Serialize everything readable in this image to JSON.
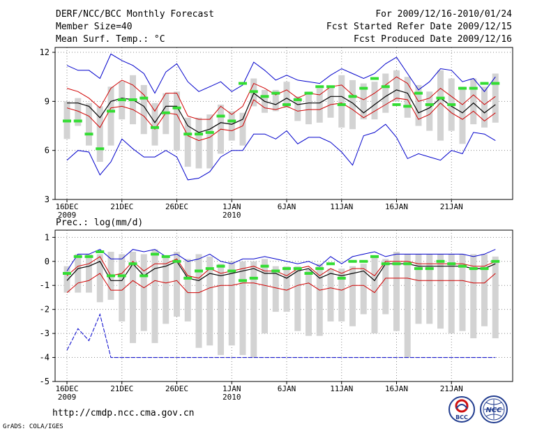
{
  "header": {
    "title": "DERF/NCC/BCC Monthly Forecast",
    "member_size": "Member Size=40",
    "variable1": "Mean Surf. Temp.: °C",
    "period": "For 2009/12/16-2010/01/24",
    "fcst_started": "Fcst Started Refer Date 2009/12/15",
    "fcst_produced": "Fcst Produced Date 2009/12/16"
  },
  "footer": {
    "url": "http://cmdp.ncc.cma.gov.cn",
    "credit": "GrADS: COLA/IGES",
    "logo_bcc": "BCC",
    "logo_ncc": "NCC"
  },
  "colors": {
    "box": "#d3d3d3",
    "mean_line": "#000000",
    "spread_line": "#d00000",
    "extreme_line": "#0000cc",
    "marker": "#33dd33",
    "grid": "#888888"
  },
  "chart_data": [
    {
      "type": "line",
      "title": "Mean Surf. Temp.: °C",
      "ylim": [
        3,
        12.3
      ],
      "yticks": [
        3,
        6,
        9,
        12
      ],
      "ytick_labels": [
        "3",
        "6",
        "9",
        "12"
      ],
      "x": [
        0,
        1,
        2,
        3,
        4,
        5,
        6,
        7,
        8,
        9,
        10,
        11,
        12,
        13,
        14,
        15,
        16,
        17,
        18,
        19,
        20,
        21,
        22,
        23,
        24,
        25,
        26,
        27,
        28,
        29,
        30,
        31,
        32,
        33,
        34,
        35,
        36,
        37,
        38,
        39
      ],
      "xticks": [
        0,
        5,
        10,
        15,
        20,
        25,
        30,
        35
      ],
      "xtick_labels": [
        "16DEC",
        "21DEC",
        "26DEC",
        "1JAN",
        "6JAN",
        "11JAN",
        "16JAN",
        "21JAN"
      ],
      "xtick_sublabels": [
        "2009",
        "",
        "",
        "2010",
        "",
        "",
        "",
        ""
      ],
      "series": [
        {
          "name": "max",
          "values": [
            11.2,
            10.9,
            10.9,
            10.4,
            11.9,
            11.5,
            11.2,
            10.7,
            9.5,
            10.8,
            11.3,
            10.2,
            9.6,
            9.9,
            10.2,
            9.6,
            10.0,
            11.4,
            10.9,
            10.3,
            10.6,
            10.3,
            10.2,
            10.1,
            10.6,
            11.0,
            10.7,
            10.4,
            10.7,
            11.3,
            11.7,
            10.7,
            9.7,
            10.2,
            11.0,
            10.9,
            10.2,
            10.4,
            9.6,
            10.5
          ]
        },
        {
          "name": "upper",
          "values": [
            9.8,
            9.6,
            9.2,
            8.6,
            9.8,
            10.3,
            10.0,
            9.4,
            8.4,
            9.5,
            9.5,
            8.1,
            7.9,
            7.9,
            8.7,
            8.2,
            8.7,
            10.1,
            9.8,
            9.4,
            9.7,
            9.2,
            9.5,
            9.4,
            9.9,
            10.0,
            9.4,
            9.1,
            9.5,
            10.0,
            10.5,
            10.1,
            9.0,
            9.2,
            9.8,
            9.3,
            8.8,
            9.4,
            8.8,
            9.3
          ]
        },
        {
          "name": "mean",
          "values": [
            8.9,
            8.9,
            8.7,
            8.0,
            9.0,
            9.2,
            9.1,
            8.7,
            7.7,
            8.7,
            8.7,
            7.5,
            7.1,
            7.3,
            7.7,
            7.6,
            7.9,
            9.5,
            9.0,
            8.8,
            9.2,
            8.8,
            8.9,
            8.9,
            9.3,
            9.3,
            8.9,
            8.3,
            8.8,
            9.3,
            9.7,
            9.5,
            8.3,
            8.6,
            9.2,
            8.7,
            8.3,
            8.9,
            8.3,
            8.8
          ]
        },
        {
          "name": "lower",
          "values": [
            8.6,
            8.4,
            8.1,
            7.4,
            8.6,
            8.7,
            8.5,
            8.1,
            7.3,
            8.3,
            8.2,
            6.9,
            6.6,
            6.8,
            7.3,
            7.2,
            7.5,
            9.1,
            8.6,
            8.5,
            8.7,
            8.4,
            8.5,
            8.5,
            8.8,
            8.9,
            8.5,
            8.0,
            8.4,
            8.8,
            9.2,
            9.1,
            7.9,
            8.2,
            8.9,
            8.3,
            7.9,
            8.4,
            7.8,
            8.3
          ]
        },
        {
          "name": "min",
          "values": [
            5.4,
            6.0,
            5.9,
            4.5,
            5.3,
            6.7,
            6.1,
            5.6,
            5.6,
            6.0,
            5.6,
            4.2,
            4.3,
            4.7,
            5.6,
            6.0,
            6.0,
            7.0,
            7.0,
            6.7,
            7.2,
            6.4,
            6.8,
            6.8,
            6.5,
            5.9,
            5.1,
            6.9,
            7.1,
            7.6,
            6.8,
            5.5,
            5.8,
            5.6,
            5.4,
            6.0,
            5.8,
            7.1,
            7.0,
            6.6
          ]
        },
        {
          "name": "box_top",
          "values": [
            9.0,
            9.2,
            8.9,
            8.7,
            9.9,
            10.2,
            10.6,
            10.0,
            8.9,
            9.5,
            9.6,
            8.0,
            8.0,
            8.2,
            8.8,
            8.4,
            8.3,
            10.4,
            9.7,
            9.7,
            10.2,
            9.3,
            9.6,
            9.8,
            9.9,
            10.6,
            10.3,
            10.1,
            10.2,
            10.7,
            10.9,
            10.5,
            10.0,
            9.6,
            10.9,
            10.4,
            9.9,
            10.4,
            9.9,
            10.7
          ]
        },
        {
          "name": "box_bottom",
          "values": [
            6.7,
            7.5,
            6.3,
            5.3,
            6.3,
            7.9,
            7.6,
            7.0,
            6.3,
            7.0,
            6.0,
            5.0,
            4.9,
            4.9,
            5.8,
            6.6,
            6.3,
            8.7,
            8.3,
            8.4,
            8.6,
            7.8,
            7.6,
            7.7,
            8.0,
            7.4,
            7.3,
            7.9,
            7.9,
            8.3,
            9.0,
            8.0,
            7.5,
            7.2,
            6.6,
            7.2,
            6.4,
            7.6,
            7.4,
            7.7
          ]
        },
        {
          "name": "observed_marker",
          "values": [
            7.8,
            7.8,
            7.0,
            6.1,
            8.4,
            9.1,
            9.1,
            9.2,
            7.4,
            8.3,
            8.6,
            7.0,
            7.0,
            7.1,
            8.1,
            7.8,
            10.1,
            9.6,
            9.3,
            9.5,
            8.8,
            9.1,
            9.5,
            9.9,
            9.9,
            8.8,
            9.3,
            9.8,
            10.4,
            9.9,
            8.8,
            8.7,
            9.5,
            8.8,
            9.2,
            8.8,
            9.8,
            9.8,
            10.1,
            10.1
          ]
        }
      ]
    },
    {
      "type": "line",
      "title": "Prec.: log(mm/d)",
      "ylim": [
        -5,
        1.3
      ],
      "yticks": [
        -5,
        -4,
        -3,
        -2,
        -1,
        0,
        1
      ],
      "ytick_labels": [
        "-5",
        "-4",
        "-3",
        "-2",
        "-1",
        "0",
        "1"
      ],
      "x": [
        0,
        1,
        2,
        3,
        4,
        5,
        6,
        7,
        8,
        9,
        10,
        11,
        12,
        13,
        14,
        15,
        16,
        17,
        18,
        19,
        20,
        21,
        22,
        23,
        24,
        25,
        26,
        27,
        28,
        29,
        30,
        31,
        32,
        33,
        34,
        35,
        36,
        37,
        38,
        39
      ],
      "xticks": [
        0,
        5,
        10,
        15,
        20,
        25,
        30,
        35
      ],
      "xtick_labels": [
        "16DEC",
        "21DEC",
        "26DEC",
        "1JAN",
        "6JAN",
        "11JAN",
        "16JAN",
        "21JAN"
      ],
      "xtick_sublabels": [
        "2009",
        "",
        "",
        "2010",
        "",
        "",
        "",
        ""
      ],
      "series": [
        {
          "name": "max",
          "values": [
            -0.4,
            0.3,
            0.3,
            0.5,
            0.1,
            0.1,
            0.5,
            0.4,
            0.5,
            0.2,
            0.3,
            0.0,
            0.1,
            0.3,
            0.0,
            -0.1,
            0.1,
            0.1,
            0.2,
            0.1,
            0.0,
            -0.1,
            0.0,
            -0.2,
            0.2,
            -0.1,
            0.2,
            0.3,
            0.4,
            0.2,
            0.3,
            0.3,
            0.3,
            0.3,
            0.3,
            0.3,
            0.3,
            0.2,
            0.3,
            0.5
          ]
        },
        {
          "name": "upper",
          "values": [
            -0.6,
            -0.2,
            -0.1,
            0.2,
            -0.6,
            -0.5,
            0.0,
            -0.4,
            -0.1,
            -0.1,
            0.1,
            -0.6,
            -0.7,
            -0.3,
            -0.5,
            -0.4,
            -0.3,
            -0.2,
            -0.4,
            -0.4,
            -0.6,
            -0.3,
            -0.2,
            -0.6,
            -0.3,
            -0.5,
            -0.3,
            -0.3,
            -0.6,
            0.0,
            0.0,
            0.0,
            -0.1,
            -0.1,
            -0.1,
            -0.1,
            -0.1,
            -0.2,
            -0.2,
            0.0
          ]
        },
        {
          "name": "mean",
          "values": [
            -0.8,
            -0.3,
            -0.2,
            0.0,
            -0.8,
            -0.8,
            -0.1,
            -0.6,
            -0.3,
            -0.2,
            0.0,
            -0.7,
            -0.8,
            -0.5,
            -0.6,
            -0.5,
            -0.4,
            -0.3,
            -0.5,
            -0.5,
            -0.7,
            -0.4,
            -0.3,
            -0.7,
            -0.5,
            -0.6,
            -0.5,
            -0.4,
            -0.8,
            -0.1,
            -0.1,
            -0.1,
            -0.2,
            -0.2,
            -0.2,
            -0.2,
            -0.2,
            -0.3,
            -0.3,
            -0.1
          ]
        },
        {
          "name": "lower",
          "values": [
            -1.3,
            -0.9,
            -0.8,
            -0.5,
            -1.2,
            -1.2,
            -0.8,
            -1.1,
            -0.8,
            -0.9,
            -0.8,
            -1.3,
            -1.3,
            -1.1,
            -1.0,
            -1.0,
            -0.9,
            -0.9,
            -1.0,
            -1.1,
            -1.2,
            -1.0,
            -0.9,
            -1.2,
            -1.1,
            -1.2,
            -1.0,
            -1.0,
            -1.3,
            -0.7,
            -0.7,
            -0.7,
            -0.8,
            -0.8,
            -0.8,
            -0.8,
            -0.8,
            -0.9,
            -0.9,
            -0.5
          ]
        },
        {
          "name": "min",
          "values": [
            -3.7,
            -2.8,
            -3.3,
            -2.2,
            -4.0,
            -4.0,
            -4.0,
            -4.0,
            -4.0,
            -4.0,
            -4.0,
            -4.0,
            -4.0,
            -4.0,
            -4.0,
            -4.0,
            -4.0,
            -4.0,
            -4.0,
            -4.0,
            -4.0,
            -4.0,
            -4.0,
            -4.0,
            -4.0,
            -4.0,
            -4.0,
            -4.0,
            -4.0,
            -4.0,
            -4.0,
            -4.0,
            -4.0,
            -4.0,
            -4.0,
            -4.0,
            -4.0,
            -4.0,
            -4.0,
            -4.0
          ]
        },
        {
          "name": "box_top",
          "values": [
            -0.2,
            0.3,
            0.3,
            0.3,
            0.4,
            0.3,
            0.4,
            0.3,
            0.5,
            0.2,
            0.4,
            0.1,
            0.3,
            0.2,
            -0.1,
            0.0,
            0.0,
            0.0,
            0.1,
            -0.2,
            -0.2,
            -0.2,
            -0.3,
            -0.1,
            -0.3,
            -0.3,
            -0.2,
            -0.1,
            0.2,
            0.1,
            0.4,
            0.3,
            0.3,
            0.3,
            0.3,
            0.3,
            0.3,
            0.3,
            0.3,
            0.2
          ]
        },
        {
          "name": "box_bottom",
          "values": [
            -1.3,
            -1.3,
            -1.3,
            -1.7,
            -1.6,
            -2.5,
            -3.4,
            -2.9,
            -3.4,
            -2.6,
            -2.3,
            -2.5,
            -3.6,
            -3.5,
            -3.9,
            -3.5,
            -3.9,
            -4.0,
            -3.0,
            -2.1,
            -2.1,
            -2.9,
            -3.1,
            -3.1,
            -2.5,
            -2.5,
            -2.7,
            -2.2,
            -3.0,
            -2.2,
            -2.9,
            -4.0,
            -2.6,
            -2.6,
            -2.8,
            -3.0,
            -2.9,
            -3.2,
            -2.7,
            -3.2
          ]
        },
        {
          "name": "observed_marker",
          "values": [
            -0.5,
            0.2,
            0.2,
            0.4,
            -0.6,
            -0.6,
            -0.1,
            -0.6,
            0.3,
            0.2,
            0.0,
            -0.7,
            -0.4,
            -0.3,
            -0.2,
            -0.4,
            -0.8,
            -0.7,
            -0.2,
            -0.4,
            -0.3,
            -0.3,
            -0.5,
            -0.3,
            -0.1,
            -0.7,
            0.0,
            0.0,
            0.2,
            -0.1,
            -0.1,
            -0.1,
            -0.3,
            -0.3,
            0.0,
            -0.1,
            -0.2,
            -0.3,
            -0.3,
            0.0
          ]
        }
      ]
    }
  ]
}
